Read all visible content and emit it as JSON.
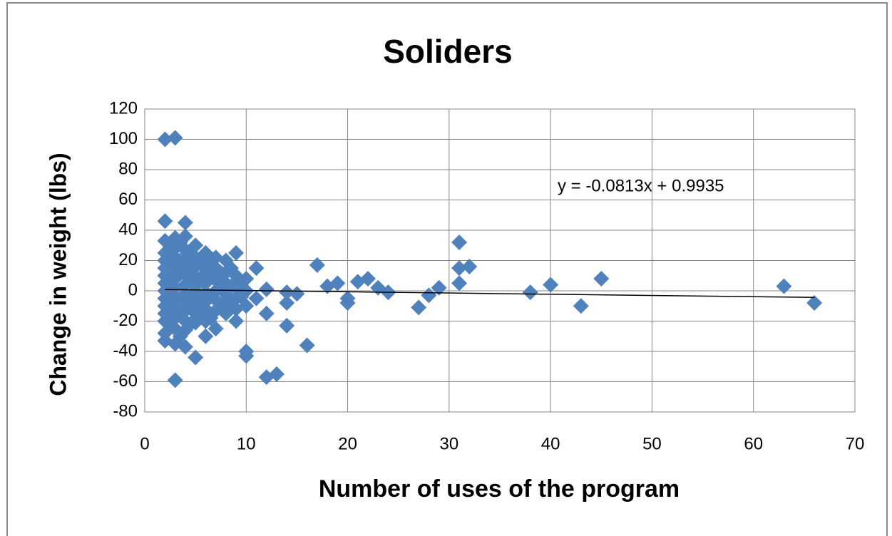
{
  "chart_data": {
    "type": "scatter",
    "title": "Soliders",
    "xlabel": "Number of uses of the program",
    "ylabel": "Change in weight (lbs)",
    "xlim": [
      0,
      70
    ],
    "xticks": [
      0,
      10,
      20,
      30,
      40,
      50,
      60,
      70
    ],
    "ylim": [
      -80,
      120
    ],
    "yticks": [
      -80,
      -60,
      -40,
      -20,
      0,
      20,
      40,
      60,
      80,
      100,
      120
    ],
    "grid": true,
    "color": "#4f81bd",
    "x": [
      2,
      2,
      2,
      2,
      2,
      2,
      2,
      2,
      2,
      2,
      2,
      2,
      2,
      2,
      2,
      2.5,
      2.5,
      2.5,
      2.5,
      2.5,
      2.5,
      3,
      3,
      3,
      3,
      3,
      3,
      3,
      3,
      3,
      3,
      3,
      3,
      3,
      3,
      3.5,
      3.5,
      3.5,
      3.5,
      3.5,
      3.5,
      4,
      4,
      4,
      4,
      4,
      4,
      4,
      4,
      4,
      4,
      4,
      4,
      4.5,
      4.5,
      4.5,
      4.5,
      4.5,
      4.5,
      5,
      5,
      5,
      5,
      5,
      5,
      5,
      5,
      5,
      5,
      5.5,
      5.5,
      5.5,
      5.5,
      6,
      6,
      6,
      6,
      6,
      6,
      6,
      6,
      6,
      6.5,
      6.5,
      6.5,
      6.5,
      7,
      7,
      7,
      7,
      7,
      7,
      7,
      7.5,
      7.5,
      7.5,
      8,
      8,
      8,
      8,
      8,
      8,
      8.5,
      8.5,
      8.5,
      9,
      9,
      9,
      9,
      9,
      9,
      9.5,
      9.5,
      10,
      10,
      10,
      10,
      10,
      11,
      11,
      12,
      12,
      12,
      13,
      14,
      14,
      14,
      15,
      16,
      17,
      18,
      19,
      20,
      20,
      21,
      22,
      23,
      24,
      27,
      28,
      29,
      31,
      31,
      31,
      32,
      38,
      40,
      43,
      45,
      63,
      66
    ],
    "y": [
      100,
      46,
      33,
      25,
      20,
      15,
      10,
      5,
      0,
      -5,
      -10,
      -15,
      -20,
      -28,
      -33,
      30,
      18,
      8,
      -3,
      -12,
      -22,
      101,
      35,
      28,
      22,
      15,
      8,
      2,
      -4,
      -9,
      -14,
      -18,
      -25,
      -35,
      -59,
      32,
      20,
      12,
      -6,
      -16,
      -30,
      45,
      36,
      27,
      19,
      11,
      4,
      -2,
      -8,
      -13,
      -20,
      -26,
      -37,
      25,
      14,
      6,
      -4,
      -11,
      -22,
      30,
      22,
      16,
      9,
      3,
      -3,
      -9,
      -15,
      -21,
      -44,
      18,
      8,
      -6,
      -14,
      25,
      18,
      12,
      5,
      -1,
      -7,
      -12,
      -20,
      -30,
      20,
      10,
      -4,
      -18,
      22,
      15,
      7,
      0,
      -6,
      -13,
      -25,
      12,
      2,
      -9,
      20,
      12,
      5,
      -2,
      -8,
      -15,
      15,
      3,
      -10,
      25,
      10,
      2,
      -5,
      -12,
      -20,
      6,
      -4,
      8,
      0,
      -10,
      -40,
      -43,
      15,
      -5,
      1,
      -15,
      -57,
      -55,
      -1,
      -8,
      -23,
      -2,
      -36,
      17,
      3,
      5,
      -5,
      -8,
      6,
      8,
      2,
      -1,
      -11,
      -3,
      2,
      32,
      15,
      5,
      16,
      -1,
      4,
      -10,
      8,
      3,
      -8
    ],
    "trendline": {
      "slope": -0.0813,
      "intercept": 0.9935,
      "label": "y = -0.0813x + 0.9935"
    }
  }
}
